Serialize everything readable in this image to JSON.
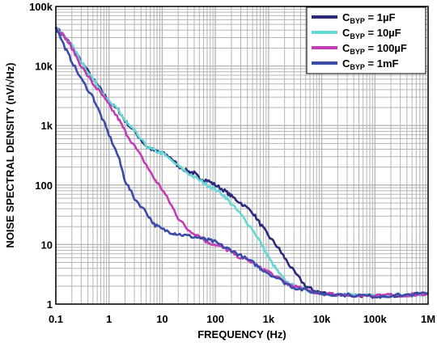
{
  "chart_data": {
    "type": "line",
    "title": "",
    "xlabel": "FREQUENCY (Hz)",
    "ylabel": "NOISE SPECTRAL DENSITY (nV/√Hz)",
    "x_scale": "log",
    "y_scale": "log",
    "xlim": [
      0.1,
      1000000
    ],
    "ylim": [
      1,
      100000
    ],
    "grid": true,
    "legend_position": "top-right",
    "x_ticks": [
      {
        "value": 0.1,
        "label": "0.1"
      },
      {
        "value": 1,
        "label": "1"
      },
      {
        "value": 10,
        "label": "10"
      },
      {
        "value": 100,
        "label": "100"
      },
      {
        "value": 1000,
        "label": "1k"
      },
      {
        "value": 10000,
        "label": "10k"
      },
      {
        "value": 100000,
        "label": "100k"
      },
      {
        "value": 1000000,
        "label": "1M"
      }
    ],
    "y_ticks": [
      {
        "value": 1,
        "label": "1"
      },
      {
        "value": 10,
        "label": "10"
      },
      {
        "value": 100,
        "label": "100"
      },
      {
        "value": 1000,
        "label": "1k"
      },
      {
        "value": 10000,
        "label": "10k"
      },
      {
        "value": 100000,
        "label": "100k"
      }
    ],
    "series": [
      {
        "name": "C",
        "subscript": "BYP",
        "suffix": " = 1µF",
        "color": "#2b2a7a",
        "points": [
          [
            0.1,
            45000
          ],
          [
            0.15,
            30000
          ],
          [
            0.2,
            22000
          ],
          [
            0.3,
            12000
          ],
          [
            0.5,
            6000
          ],
          [
            0.7,
            4000
          ],
          [
            1,
            2500
          ],
          [
            1.5,
            1800
          ],
          [
            2,
            1200
          ],
          [
            3,
            800
          ],
          [
            5,
            450
          ],
          [
            7,
            380
          ],
          [
            10,
            350
          ],
          [
            15,
            280
          ],
          [
            20,
            210
          ],
          [
            30,
            170
          ],
          [
            40,
            160
          ],
          [
            50,
            130
          ],
          [
            70,
            120
          ],
          [
            100,
            100
          ],
          [
            150,
            80
          ],
          [
            200,
            65
          ],
          [
            300,
            50
          ],
          [
            500,
            35
          ],
          [
            700,
            22
          ],
          [
            1000,
            14
          ],
          [
            1500,
            9
          ],
          [
            2000,
            6
          ],
          [
            3000,
            3.5
          ],
          [
            5000,
            2
          ],
          [
            7000,
            1.7
          ],
          [
            10000,
            1.55
          ],
          [
            20000,
            1.45
          ],
          [
            50000,
            1.4
          ],
          [
            100000,
            1.35
          ],
          [
            200000,
            1.4
          ],
          [
            500000,
            1.45
          ],
          [
            1000000,
            1.5
          ]
        ]
      },
      {
        "name": "C",
        "subscript": "BYP",
        "suffix": " = 10µF",
        "color": "#66d8d4",
        "points": [
          [
            0.1,
            45000
          ],
          [
            0.15,
            30000
          ],
          [
            0.2,
            22000
          ],
          [
            0.3,
            12000
          ],
          [
            0.5,
            6000
          ],
          [
            0.7,
            4000
          ],
          [
            1,
            2500
          ],
          [
            1.5,
            1800
          ],
          [
            2,
            1200
          ],
          [
            3,
            800
          ],
          [
            5,
            450
          ],
          [
            7,
            380
          ],
          [
            10,
            340
          ],
          [
            20,
            210
          ],
          [
            30,
            160
          ],
          [
            50,
            120
          ],
          [
            70,
            100
          ],
          [
            100,
            85
          ],
          [
            150,
            65
          ],
          [
            200,
            48
          ],
          [
            300,
            32
          ],
          [
            500,
            18
          ],
          [
            700,
            11
          ],
          [
            1000,
            6
          ],
          [
            1500,
            3.5
          ],
          [
            2000,
            2.5
          ],
          [
            3000,
            2
          ],
          [
            5000,
            1.7
          ],
          [
            10000,
            1.5
          ],
          [
            20000,
            1.45
          ],
          [
            50000,
            1.4
          ],
          [
            100000,
            1.35
          ],
          [
            200000,
            1.4
          ],
          [
            500000,
            1.45
          ],
          [
            1000000,
            1.5
          ]
        ]
      },
      {
        "name": "C",
        "subscript": "BYP",
        "suffix": " = 100µF",
        "color": "#c23db5",
        "points": [
          [
            0.1,
            45000
          ],
          [
            0.15,
            30000
          ],
          [
            0.2,
            20000
          ],
          [
            0.3,
            10000
          ],
          [
            0.5,
            5000
          ],
          [
            0.7,
            3500
          ],
          [
            1,
            2200
          ],
          [
            1.5,
            1300
          ],
          [
            2,
            800
          ],
          [
            3,
            450
          ],
          [
            5,
            220
          ],
          [
            7,
            130
          ],
          [
            10,
            85
          ],
          [
            15,
            45
          ],
          [
            20,
            28
          ],
          [
            30,
            18
          ],
          [
            50,
            14
          ],
          [
            70,
            11
          ],
          [
            100,
            10
          ],
          [
            150,
            8.5
          ],
          [
            200,
            7.5
          ],
          [
            300,
            6
          ],
          [
            500,
            5
          ],
          [
            700,
            4
          ],
          [
            1000,
            3.5
          ],
          [
            2000,
            2.3
          ],
          [
            3000,
            2
          ],
          [
            5000,
            1.7
          ],
          [
            10000,
            1.5
          ],
          [
            20000,
            1.45
          ],
          [
            50000,
            1.4
          ],
          [
            100000,
            1.35
          ],
          [
            200000,
            1.4
          ],
          [
            500000,
            1.45
          ],
          [
            1000000,
            1.5
          ]
        ]
      },
      {
        "name": "C",
        "subscript": "BYP",
        "suffix": " = 1mF",
        "color": "#3a4ba8",
        "points": [
          [
            0.1,
            45000
          ],
          [
            0.15,
            20000
          ],
          [
            0.2,
            12000
          ],
          [
            0.3,
            6000
          ],
          [
            0.5,
            3000
          ],
          [
            0.7,
            1500
          ],
          [
            1,
            700
          ],
          [
            1.5,
            300
          ],
          [
            2,
            120
          ],
          [
            3,
            60
          ],
          [
            5,
            35
          ],
          [
            7,
            22
          ],
          [
            10,
            18
          ],
          [
            15,
            16
          ],
          [
            20,
            15
          ],
          [
            30,
            14
          ],
          [
            50,
            13
          ],
          [
            70,
            12
          ],
          [
            100,
            11
          ],
          [
            150,
            9
          ],
          [
            200,
            8
          ],
          [
            300,
            6.5
          ],
          [
            500,
            5
          ],
          [
            700,
            4
          ],
          [
            1000,
            3.3
          ],
          [
            2000,
            2.3
          ],
          [
            3000,
            1.9
          ],
          [
            5000,
            1.7
          ],
          [
            10000,
            1.5
          ],
          [
            20000,
            1.45
          ],
          [
            50000,
            1.4
          ],
          [
            100000,
            1.35
          ],
          [
            200000,
            1.4
          ],
          [
            500000,
            1.45
          ],
          [
            1000000,
            1.5
          ]
        ]
      }
    ]
  }
}
